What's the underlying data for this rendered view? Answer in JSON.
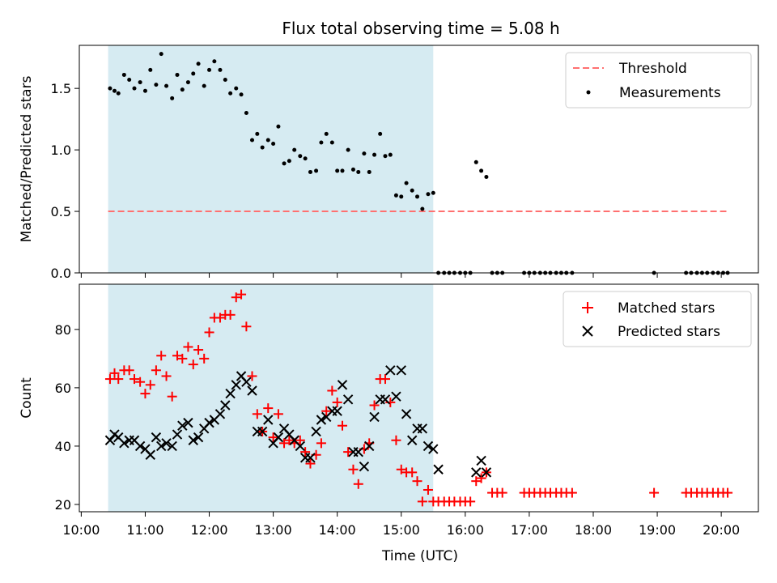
{
  "chart_data": [
    {
      "type": "scatter",
      "title": "Flux total observing time = 5.08 h",
      "xlabel": "",
      "ylabel": "Matched/Predicted stars",
      "x_unit": "hours (UTC)",
      "xlim": [
        9.97,
        20.58
      ],
      "ylim": [
        0.0,
        1.85
      ],
      "yticks": [
        0.0,
        0.5,
        1.0,
        1.5
      ],
      "ytick_labels": [
        "0.0",
        "0.5",
        "1.0",
        "1.5"
      ],
      "shaded_span": {
        "x": [
          10.42,
          15.5
        ],
        "color": "#add8e6"
      },
      "legend": {
        "position": "upper-right",
        "entries": [
          "Threshold",
          "Measurements"
        ]
      },
      "series": [
        {
          "name": "Threshold",
          "style": "dashed-line",
          "color": "#ff7070",
          "x": [
            10.42,
            20.08
          ],
          "y": [
            0.5,
            0.5
          ]
        },
        {
          "name": "Measurements",
          "style": "dot",
          "color": "#000000",
          "points": [
            [
              10.45,
              1.5
            ],
            [
              10.52,
              1.48
            ],
            [
              10.58,
              1.46
            ],
            [
              10.67,
              1.61
            ],
            [
              10.75,
              1.57
            ],
            [
              10.83,
              1.5
            ],
            [
              10.92,
              1.55
            ],
            [
              11.0,
              1.48
            ],
            [
              11.08,
              1.65
            ],
            [
              11.17,
              1.53
            ],
            [
              11.25,
              1.78
            ],
            [
              11.33,
              1.52
            ],
            [
              11.42,
              1.42
            ],
            [
              11.5,
              1.61
            ],
            [
              11.58,
              1.49
            ],
            [
              11.67,
              1.55
            ],
            [
              11.75,
              1.62
            ],
            [
              11.83,
              1.7
            ],
            [
              11.92,
              1.52
            ],
            [
              12.0,
              1.65
            ],
            [
              12.08,
              1.72
            ],
            [
              12.17,
              1.65
            ],
            [
              12.25,
              1.57
            ],
            [
              12.33,
              1.46
            ],
            [
              12.42,
              1.5
            ],
            [
              12.5,
              1.45
            ],
            [
              12.58,
              1.3
            ],
            [
              12.67,
              1.08
            ],
            [
              12.75,
              1.13
            ],
            [
              12.83,
              1.02
            ],
            [
              12.92,
              1.08
            ],
            [
              13.0,
              1.05
            ],
            [
              13.08,
              1.19
            ],
            [
              13.17,
              0.89
            ],
            [
              13.25,
              0.91
            ],
            [
              13.33,
              1.0
            ],
            [
              13.42,
              0.95
            ],
            [
              13.5,
              0.93
            ],
            [
              13.58,
              0.82
            ],
            [
              13.67,
              0.83
            ],
            [
              13.75,
              1.06
            ],
            [
              13.83,
              1.13
            ],
            [
              13.92,
              1.06
            ],
            [
              14.0,
              0.83
            ],
            [
              14.08,
              0.83
            ],
            [
              14.17,
              1.0
            ],
            [
              14.25,
              0.84
            ],
            [
              14.33,
              0.82
            ],
            [
              14.42,
              0.97
            ],
            [
              14.5,
              0.82
            ],
            [
              14.58,
              0.96
            ],
            [
              14.67,
              1.13
            ],
            [
              14.75,
              0.95
            ],
            [
              14.83,
              0.96
            ],
            [
              14.92,
              0.63
            ],
            [
              15.0,
              0.62
            ],
            [
              15.08,
              0.73
            ],
            [
              15.17,
              0.67
            ],
            [
              15.25,
              0.62
            ],
            [
              15.33,
              0.52
            ],
            [
              15.42,
              0.64
            ],
            [
              15.5,
              0.65
            ],
            [
              15.58,
              0.0
            ],
            [
              15.67,
              0.0
            ],
            [
              15.75,
              0.0
            ],
            [
              15.83,
              0.0
            ],
            [
              15.92,
              0.0
            ],
            [
              16.0,
              0.0
            ],
            [
              16.08,
              0.0
            ],
            [
              16.17,
              0.9
            ],
            [
              16.25,
              0.83
            ],
            [
              16.33,
              0.78
            ],
            [
              16.42,
              0.0
            ],
            [
              16.5,
              0.0
            ],
            [
              16.58,
              0.0
            ],
            [
              16.92,
              0.0
            ],
            [
              17.0,
              0.0
            ],
            [
              17.08,
              0.0
            ],
            [
              17.17,
              0.0
            ],
            [
              17.25,
              0.0
            ],
            [
              17.33,
              0.0
            ],
            [
              17.42,
              0.0
            ],
            [
              17.5,
              0.0
            ],
            [
              17.58,
              0.0
            ],
            [
              17.67,
              0.0
            ],
            [
              18.95,
              0.0
            ],
            [
              19.45,
              0.0
            ],
            [
              19.53,
              0.0
            ],
            [
              19.62,
              0.0
            ],
            [
              19.7,
              0.0
            ],
            [
              19.78,
              0.0
            ],
            [
              19.87,
              0.0
            ],
            [
              19.95,
              0.0
            ],
            [
              20.03,
              0.0
            ],
            [
              20.1,
              0.0
            ]
          ]
        }
      ]
    },
    {
      "type": "scatter",
      "title": "",
      "xlabel": "Time (UTC)",
      "ylabel": "Count",
      "x_unit": "hours (UTC)",
      "xlim": [
        9.97,
        20.58
      ],
      "ylim": [
        17.5,
        95.5
      ],
      "xticks": [
        10,
        11,
        12,
        13,
        14,
        15,
        16,
        17,
        18,
        19,
        20
      ],
      "xtick_labels": [
        "10:00",
        "11:00",
        "12:00",
        "13:00",
        "14:00",
        "15:00",
        "16:00",
        "17:00",
        "18:00",
        "19:00",
        "20:00"
      ],
      "yticks": [
        20,
        40,
        60,
        80
      ],
      "ytick_labels": [
        "20",
        "40",
        "60",
        "80"
      ],
      "shaded_span": {
        "x": [
          10.42,
          15.5
        ],
        "color": "#add8e6"
      },
      "legend": {
        "position": "upper-right",
        "entries": [
          "Matched stars",
          "Predicted stars"
        ]
      },
      "series": [
        {
          "name": "Matched stars",
          "marker": "plus",
          "color": "#ff0000",
          "points": [
            [
              10.45,
              63
            ],
            [
              10.52,
              65
            ],
            [
              10.58,
              63
            ],
            [
              10.67,
              66
            ],
            [
              10.75,
              66
            ],
            [
              10.83,
              63
            ],
            [
              10.92,
              62
            ],
            [
              11.0,
              58
            ],
            [
              11.08,
              61
            ],
            [
              11.17,
              66
            ],
            [
              11.25,
              71
            ],
            [
              11.33,
              64
            ],
            [
              11.42,
              57
            ],
            [
              11.5,
              71
            ],
            [
              11.58,
              70
            ],
            [
              11.67,
              74
            ],
            [
              11.75,
              68
            ],
            [
              11.83,
              73
            ],
            [
              11.92,
              70
            ],
            [
              12.0,
              79
            ],
            [
              12.08,
              84
            ],
            [
              12.17,
              84
            ],
            [
              12.25,
              85
            ],
            [
              12.33,
              85
            ],
            [
              12.42,
              91
            ],
            [
              12.5,
              92
            ],
            [
              12.58,
              81
            ],
            [
              12.67,
              64
            ],
            [
              12.75,
              51
            ],
            [
              12.83,
              45
            ],
            [
              12.92,
              53
            ],
            [
              13.0,
              43
            ],
            [
              13.08,
              51
            ],
            [
              13.17,
              41
            ],
            [
              13.25,
              42
            ],
            [
              13.33,
              41
            ],
            [
              13.42,
              42
            ],
            [
              13.5,
              38
            ],
            [
              13.58,
              34
            ],
            [
              13.67,
              37
            ],
            [
              13.75,
              41
            ],
            [
              13.83,
              52
            ],
            [
              13.92,
              59
            ],
            [
              14.0,
              55
            ],
            [
              14.08,
              47
            ],
            [
              14.17,
              38
            ],
            [
              14.25,
              32
            ],
            [
              14.33,
              27
            ],
            [
              14.42,
              39
            ],
            [
              14.5,
              41
            ],
            [
              14.58,
              54
            ],
            [
              14.67,
              63
            ],
            [
              14.75,
              63
            ],
            [
              14.83,
              55
            ],
            [
              14.92,
              42
            ],
            [
              15.0,
              32
            ],
            [
              15.08,
              31
            ],
            [
              15.17,
              31
            ],
            [
              15.25,
              28
            ],
            [
              15.33,
              21
            ],
            [
              15.42,
              25
            ],
            [
              15.5,
              21
            ],
            [
              15.58,
              21
            ],
            [
              15.67,
              21
            ],
            [
              15.75,
              21
            ],
            [
              15.83,
              21
            ],
            [
              15.92,
              21
            ],
            [
              16.0,
              21
            ],
            [
              16.08,
              21
            ],
            [
              16.17,
              28
            ],
            [
              16.25,
              29
            ],
            [
              16.33,
              31
            ],
            [
              16.42,
              24
            ],
            [
              16.5,
              24
            ],
            [
              16.58,
              24
            ],
            [
              16.92,
              24
            ],
            [
              17.0,
              24
            ],
            [
              17.08,
              24
            ],
            [
              17.17,
              24
            ],
            [
              17.25,
              24
            ],
            [
              17.33,
              24
            ],
            [
              17.42,
              24
            ],
            [
              17.5,
              24
            ],
            [
              17.58,
              24
            ],
            [
              17.67,
              24
            ],
            [
              18.95,
              24
            ],
            [
              19.45,
              24
            ],
            [
              19.53,
              24
            ],
            [
              19.62,
              24
            ],
            [
              19.7,
              24
            ],
            [
              19.78,
              24
            ],
            [
              19.87,
              24
            ],
            [
              19.95,
              24
            ],
            [
              20.03,
              24
            ],
            [
              20.1,
              24
            ]
          ]
        },
        {
          "name": "Predicted stars",
          "marker": "x",
          "color": "#000000",
          "points": [
            [
              10.45,
              42
            ],
            [
              10.52,
              44
            ],
            [
              10.58,
              43
            ],
            [
              10.67,
              41
            ],
            [
              10.75,
              42
            ],
            [
              10.83,
              42
            ],
            [
              10.92,
              40
            ],
            [
              11.0,
              39
            ],
            [
              11.08,
              37
            ],
            [
              11.17,
              43
            ],
            [
              11.25,
              40
            ],
            [
              11.33,
              41
            ],
            [
              11.42,
              40
            ],
            [
              11.5,
              44
            ],
            [
              11.58,
              47
            ],
            [
              11.67,
              48
            ],
            [
              11.75,
              42
            ],
            [
              11.83,
              43
            ],
            [
              11.92,
              46
            ],
            [
              12.0,
              48
            ],
            [
              12.08,
              49
            ],
            [
              12.17,
              51
            ],
            [
              12.25,
              54
            ],
            [
              12.33,
              58
            ],
            [
              12.42,
              61
            ],
            [
              12.5,
              64
            ],
            [
              12.58,
              62
            ],
            [
              12.67,
              59
            ],
            [
              12.75,
              45
            ],
            [
              12.83,
              45
            ],
            [
              12.92,
              49
            ],
            [
              13.0,
              41
            ],
            [
              13.08,
              43
            ],
            [
              13.17,
              46
            ],
            [
              13.25,
              44
            ],
            [
              13.33,
              42
            ],
            [
              13.42,
              40
            ],
            [
              13.5,
              36
            ],
            [
              13.58,
              36
            ],
            [
              13.67,
              45
            ],
            [
              13.75,
              49
            ],
            [
              13.83,
              50
            ],
            [
              13.92,
              52
            ],
            [
              14.0,
              52
            ],
            [
              14.08,
              61
            ],
            [
              14.17,
              56
            ],
            [
              14.25,
              38
            ],
            [
              14.33,
              38
            ],
            [
              14.42,
              33
            ],
            [
              14.5,
              40
            ],
            [
              14.58,
              50
            ],
            [
              14.67,
              56
            ],
            [
              14.75,
              56
            ],
            [
              14.83,
              66
            ],
            [
              14.92,
              57
            ],
            [
              15.0,
              66
            ],
            [
              15.08,
              51
            ],
            [
              15.17,
              42
            ],
            [
              15.25,
              46
            ],
            [
              15.33,
              46
            ],
            [
              15.42,
              40
            ],
            [
              15.5,
              39
            ],
            [
              15.58,
              32
            ],
            [
              16.17,
              31
            ],
            [
              16.25,
              35
            ],
            [
              16.33,
              31
            ]
          ]
        }
      ]
    }
  ]
}
